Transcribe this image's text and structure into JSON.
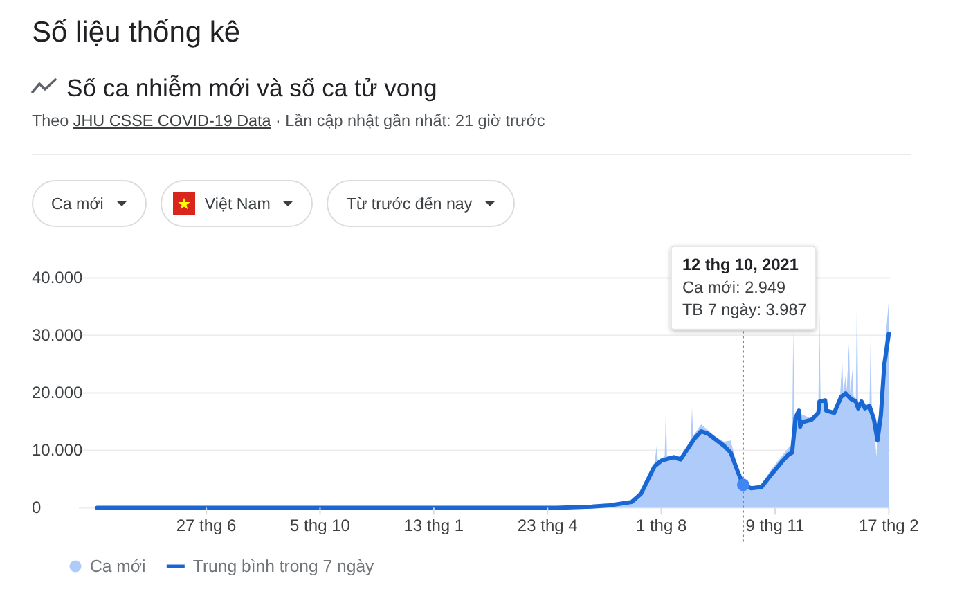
{
  "chart_data": {
    "type": "area",
    "title": "Số liệu thống kê",
    "subtitle": "Số ca nhiễm mới và số ca tử vong",
    "annotations": [
      "Theo JHU CSSE COVID-19 Data · Lần cập nhật gần nhất: 21 giờ trước",
      "Ca mới",
      "Việt Nam",
      "Từ trước đến nay"
    ],
    "xlim": [
      "2020-03-07",
      "2022-02-18"
    ],
    "xticks": [
      {
        "value": "2020-06-27",
        "label": "27 thg 6"
      },
      {
        "value": "2020-10-05",
        "label": "5 thg 10"
      },
      {
        "value": "2021-01-13",
        "label": "13 thg 1"
      },
      {
        "value": "2021-04-23",
        "label": "23 thg 4"
      },
      {
        "value": "2021-08-01",
        "label": "1 thg 8"
      },
      {
        "value": "2021-11-09",
        "label": "9 thg 11"
      },
      {
        "value": "2022-02-17",
        "label": "17 thg 2"
      }
    ],
    "ylim": [
      0,
      40000
    ],
    "yticks": [
      0,
      {
        "value": 10000,
        "label": "10.000"
      },
      {
        "value": 20000,
        "label": "20.000"
      },
      {
        "value": 30000,
        "label": "30.000"
      },
      {
        "value": 40000,
        "label": "40.000"
      }
    ],
    "grid": "y",
    "legend": "bottom",
    "ref_lines": [
      {
        "axis": "x",
        "value": "2021-10-12",
        "label": "12 thg 10, 2021\nCa mới: 2.949\nTB 7 ngày: 3.987",
        "color": "#808080",
        "line_style": "dotted"
      }
    ],
    "series": [
      {
        "name": "Ca mới",
        "color": "#aecbfa",
        "x": [
          "2020-03-23",
          "2021-05-01",
          "2021-06-01",
          "2021-06-16",
          "2021-07-06",
          "2021-07-14",
          "2021-07-20",
          "2021-07-26",
          "2021-07-28",
          "2021-07-29",
          "2021-08-04",
          "2021-08-05",
          "2021-08-06",
          "2021-08-18",
          "2021-08-22",
          "2021-08-27",
          "2021-08-28",
          "2021-08-29",
          "2021-09-05",
          "2021-09-11",
          "2021-09-17",
          "2021-09-25",
          "2021-10-01",
          "2021-10-07",
          "2021-10-12",
          "2021-10-19",
          "2021-10-28",
          "2021-11-05",
          "2021-11-15",
          "2021-11-21",
          "2021-11-24",
          "2021-11-25",
          "2021-11-26",
          "2021-11-30",
          "2021-12-11",
          "2021-12-17",
          "2021-12-18",
          "2021-12-19",
          "2021-12-23",
          "2021-12-24",
          "2021-12-31",
          "2022-01-05",
          "2022-01-07",
          "2022-01-08",
          "2022-01-10",
          "2022-01-11",
          "2022-01-13",
          "2022-01-14",
          "2022-01-16",
          "2022-01-17",
          "2022-01-19",
          "2022-01-20",
          "2022-01-21",
          "2022-01-31",
          "2022-02-01",
          "2022-02-02",
          "2022-02-05",
          "2022-02-06",
          "2022-02-09",
          "2022-02-13",
          "2022-02-17"
        ],
        "values": [
          0,
          0,
          200,
          500,
          1200,
          3000,
          5500,
          7800,
          10800,
          8000,
          9000,
          16900,
          9000,
          9000,
          10000,
          12000,
          17400,
          12500,
          14500,
          13500,
          12500,
          11500,
          11700,
          7000,
          2949,
          3500,
          4000,
          6500,
          9000,
          10500,
          11000,
          31000,
          15000,
          16500,
          15500,
          16500,
          34100,
          18500,
          18000,
          16500,
          17000,
          19000,
          25700,
          20000,
          23000,
          20500,
          28500,
          20000,
          24000,
          19500,
          19000,
          38600,
          18000,
          18000,
          29700,
          17000,
          12000,
          8800,
          18000,
          27000,
          36100
        ]
      },
      {
        "name": "Trung bình trong 7 ngày",
        "type": "line",
        "color": "#1967d2",
        "x": [
          "2020-03-23",
          "2021-05-01",
          "2021-06-01",
          "2021-06-16",
          "2021-07-06",
          "2021-07-14",
          "2021-07-20",
          "2021-07-26",
          "2021-08-01",
          "2021-08-12",
          "2021-08-18",
          "2021-08-22",
          "2021-08-30",
          "2021-09-05",
          "2021-09-11",
          "2021-09-17",
          "2021-09-25",
          "2021-10-01",
          "2021-10-07",
          "2021-10-12",
          "2021-10-19",
          "2021-10-28",
          "2021-11-05",
          "2021-11-15",
          "2021-11-21",
          "2021-11-24",
          "2021-11-27",
          "2021-11-30",
          "2021-12-01",
          "2021-12-03",
          "2021-12-11",
          "2021-12-17",
          "2021-12-18",
          "2021-12-23",
          "2021-12-24",
          "2021-12-31",
          "2022-01-06",
          "2022-01-10",
          "2022-01-15",
          "2022-01-19",
          "2022-01-21",
          "2022-01-24",
          "2022-01-27",
          "2022-01-31",
          "2022-02-04",
          "2022-02-07",
          "2022-02-10",
          "2022-02-13",
          "2022-02-17"
        ],
        "values": [
          0,
          0,
          200,
          400,
          1000,
          2400,
          4800,
          7200,
          8200,
          8800,
          8400,
          9600,
          12000,
          13300,
          12900,
          12000,
          10800,
          9600,
          6400,
          3987,
          3400,
          3600,
          5600,
          8000,
          9300,
          9600,
          15700,
          16900,
          14100,
          14900,
          15300,
          16500,
          18500,
          18700,
          16900,
          16500,
          19300,
          19900,
          18900,
          18500,
          17300,
          18500,
          17300,
          17700,
          15300,
          11700,
          16100,
          24900,
          30300
        ]
      }
    ]
  }
}
